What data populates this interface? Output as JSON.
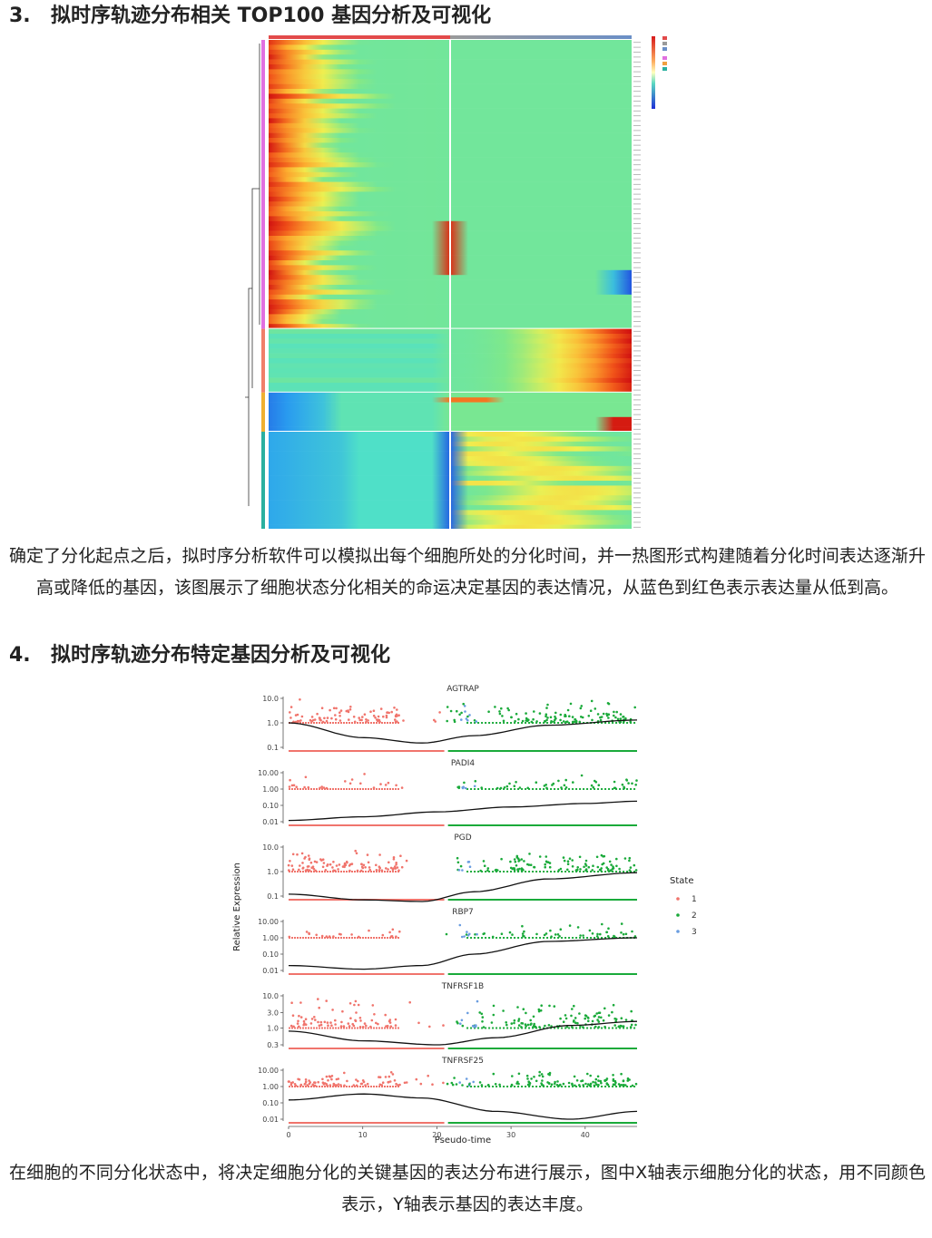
{
  "section3": {
    "number": "3.",
    "title": "拟时序轨迹分布相关 TOP100 基因分析及可视化"
  },
  "section3_caption": "确定了分化起点之后，拟时序分析软件可以模拟出每个细胞所处的分化时间，并一热图形式构建随着分化时间表达逐渐升高或降低的基因，该图展示了细胞状态分化相关的命运决定基因的表达情况，从蓝色到红色表示表达量从低到高。",
  "section4": {
    "number": "4.",
    "title": "拟时序轨迹分布特定基因分析及可视化"
  },
  "section4_caption": "在细胞的不同分化状态中，将决定细胞分化的关键基因的表达分布进行展示，图中X轴表示细胞分化的状态，用不同颜色表示，Y轴表示基因的表达丰度。",
  "colors": {
    "state1": "#f0746c",
    "state2": "#1aaa3a",
    "state3": "#6a9de0",
    "curve": "#111111"
  },
  "chart_data": [
    {
      "type": "heatmap",
      "description_of_encoding": "rows = genes (TOP100), columns = pseudotime (two branches split at center line); blue = low, red = high",
      "row_clusters": [
        {
          "cluster": 1,
          "pattern": "high early (left), low later"
        },
        {
          "cluster": 2,
          "pattern": "high at right end"
        },
        {
          "cluster": 3,
          "pattern": "low at start, high at right end"
        },
        {
          "cluster": 4,
          "pattern": "low at start and center, high on right half"
        }
      ]
    },
    {
      "type": "scatter",
      "ylabel": "Relative Expression",
      "xlabel": "Pseudo-time",
      "x_ticks": [
        "0",
        "10",
        "20",
        "30",
        "40"
      ],
      "xlim": [
        0,
        47
      ],
      "scale": "log",
      "legend": {
        "title": "State",
        "entries": [
          "1",
          "2",
          "3"
        ],
        "position": "right"
      },
      "panels": [
        {
          "gene": "AGTRAP",
          "y_ticks": [
            "10.0",
            "1.0",
            "0.1"
          ],
          "curve": [
            [
              0,
              1.0
            ],
            [
              10,
              0.25
            ],
            [
              18,
              0.15
            ],
            [
              25,
              0.3
            ],
            [
              35,
              0.8
            ],
            [
              47,
              1.3
            ]
          ]
        },
        {
          "gene": "PADI4",
          "y_ticks": [
            "10.00",
            "1.00",
            "0.10",
            "0.01"
          ],
          "curve": [
            [
              0,
              0.012
            ],
            [
              10,
              0.02
            ],
            [
              20,
              0.04
            ],
            [
              30,
              0.08
            ],
            [
              40,
              0.13
            ],
            [
              47,
              0.18
            ]
          ]
        },
        {
          "gene": "PGD",
          "y_ticks": [
            "10.0",
            "1.0",
            "0.1"
          ],
          "curve": [
            [
              0,
              0.12
            ],
            [
              10,
              0.07
            ],
            [
              18,
              0.06
            ],
            [
              25,
              0.15
            ],
            [
              35,
              0.5
            ],
            [
              47,
              0.9
            ]
          ]
        },
        {
          "gene": "RBP7",
          "y_ticks": [
            "10.00",
            "1.00",
            "0.10",
            "0.01"
          ],
          "curve": [
            [
              0,
              0.02
            ],
            [
              10,
              0.012
            ],
            [
              18,
              0.02
            ],
            [
              25,
              0.1
            ],
            [
              35,
              0.6
            ],
            [
              47,
              1.0
            ]
          ]
        },
        {
          "gene": "TNFRSF1B",
          "y_ticks": [
            "10.0",
            "3.0",
            "1.0",
            "0.3"
          ],
          "curve": [
            [
              0,
              0.8
            ],
            [
              10,
              0.4
            ],
            [
              20,
              0.3
            ],
            [
              28,
              0.5
            ],
            [
              38,
              1.2
            ],
            [
              47,
              1.6
            ]
          ]
        },
        {
          "gene": "TNFRSF25",
          "y_ticks": [
            "10.00",
            "1.00",
            "0.10",
            "0.01"
          ],
          "curve": [
            [
              0,
              0.15
            ],
            [
              10,
              0.35
            ],
            [
              18,
              0.2
            ],
            [
              28,
              0.03
            ],
            [
              38,
              0.01
            ],
            [
              47,
              0.03
            ]
          ]
        }
      ]
    }
  ]
}
